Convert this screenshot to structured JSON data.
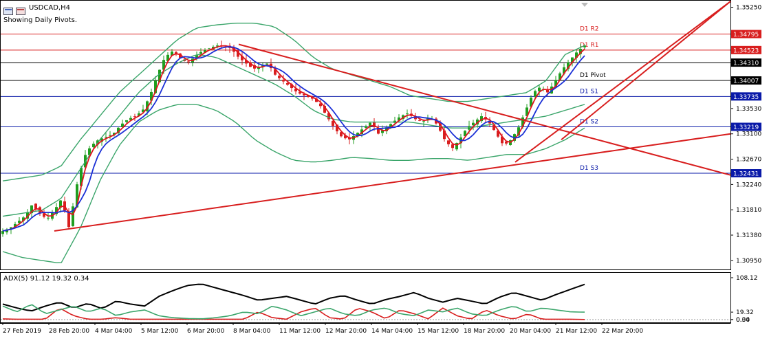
{
  "header": {
    "symbol": "USDCAD,H4",
    "pivot_note": "Showing Daily Pivots."
  },
  "indicator": {
    "label": "ADX(5) 91.12 19.32 0.34"
  },
  "colors": {
    "candle_up": "#1f9e1f",
    "candle_down": "#d81e1e",
    "bollinger": "#3aa56a",
    "ma_red": "#e0141e",
    "ma_blue": "#1a2fd6",
    "trendline": "#d81e1e",
    "pivot_red": "#d81e1e",
    "pivot_blue": "#0a1aa8",
    "pivot_black": "#000000",
    "adx_main": "#000000",
    "adx_plus": "#d81e1e",
    "adx_minus": "#3aa56a"
  },
  "chart_data": [
    {
      "type": "candlestick",
      "title": "USDCAD,H4",
      "subtitle": "Showing Daily Pivots.",
      "ylim": [
        1.3082,
        1.3535
      ],
      "y_ticks": [
        "1.35250",
        "1.34795",
        "1.34523",
        "1.34310",
        "1.34007",
        "1.33735",
        "1.33530",
        "1.33219",
        "1.33100",
        "1.32670",
        "1.32431",
        "1.32240",
        "1.31810",
        "1.31380",
        "1.30950"
      ],
      "x_ticks": [
        "27 Feb 2019",
        "28 Feb 20:00",
        "4 Mar 04:00",
        "5 Mar 12:00",
        "6 Mar 20:00",
        "8 Mar 04:00",
        "11 Mar 12:00",
        "12 Mar 20:00",
        "14 Mar 04:00",
        "15 Mar 12:00",
        "18 Mar 20:00",
        "20 Mar 04:00",
        "21 Mar 12:00",
        "22 Mar 20:00"
      ],
      "pivots": [
        {
          "name": "D1 R2",
          "value": 1.34795,
          "color": "red"
        },
        {
          "name": "D1 R1",
          "value": 1.34523,
          "color": "red"
        },
        {
          "name": "",
          "value": 1.3431,
          "color": "black"
        },
        {
          "name": "D1 Pivot",
          "value": 1.34007,
          "color": "black"
        },
        {
          "name": "D1 S1",
          "value": 1.33735,
          "color": "blue"
        },
        {
          "name": "D1 S2",
          "value": 1.33219,
          "color": "blue"
        },
        {
          "name": "D1 S3",
          "value": 1.32431,
          "color": "blue"
        }
      ],
      "price_labels": [
        "1.34795",
        "1.34523",
        "1.34310",
        "1.34007",
        "1.33735",
        "1.33219",
        "1.32431"
      ],
      "close_path": [
        1.3145,
        1.315,
        1.316,
        1.317,
        1.319,
        1.3175,
        1.3165,
        1.318,
        1.32,
        1.315,
        1.322,
        1.327,
        1.329,
        1.33,
        1.3305,
        1.331,
        1.3325,
        1.3335,
        1.334,
        1.335,
        1.3375,
        1.341,
        1.344,
        1.345,
        1.344,
        1.343,
        1.344,
        1.345,
        1.3455,
        1.346,
        1.346,
        1.3455,
        1.344,
        1.343,
        1.342,
        1.3425,
        1.343,
        1.341,
        1.34,
        1.339,
        1.338,
        1.3375,
        1.337,
        1.336,
        1.334,
        1.332,
        1.3305,
        1.33,
        1.331,
        1.332,
        1.333,
        1.331,
        1.332,
        1.333,
        1.334,
        1.3345,
        1.3335,
        1.333,
        1.334,
        1.3325,
        1.33,
        1.3285,
        1.33,
        1.332,
        1.333,
        1.334,
        1.333,
        1.331,
        1.329,
        1.33,
        1.332,
        1.335,
        1.338,
        1.339,
        1.338,
        1.34,
        1.342,
        1.3435,
        1.345,
        1.346
      ],
      "series": [
        {
          "name": "",
          "note": "bollinger upper",
          "values": [
            1.323,
            1.3235,
            1.324,
            1.3255,
            1.33,
            1.334,
            1.338,
            1.341,
            1.344,
            1.347,
            1.349,
            1.3495,
            1.3498,
            1.3498,
            1.3492,
            1.347,
            1.344,
            1.342,
            1.341,
            1.34,
            1.339,
            1.3375,
            1.337,
            1.3365,
            1.3365,
            1.337,
            1.3375,
            1.338,
            1.34,
            1.3445,
            1.346
          ]
        },
        {
          "name": "",
          "note": "bollinger middle",
          "values": [
            1.317,
            1.3175,
            1.318,
            1.32,
            1.325,
            1.33,
            1.334,
            1.338,
            1.341,
            1.343,
            1.3445,
            1.344,
            1.3425,
            1.341,
            1.3395,
            1.3375,
            1.335,
            1.3335,
            1.333,
            1.333,
            1.333,
            1.333,
            1.3325,
            1.332,
            1.332,
            1.3325,
            1.333,
            1.3335,
            1.334,
            1.335,
            1.336
          ]
        },
        {
          "name": "",
          "note": "bollinger lower",
          "values": [
            1.311,
            1.31,
            1.3095,
            1.309,
            1.315,
            1.323,
            1.329,
            1.333,
            1.335,
            1.336,
            1.336,
            1.335,
            1.333,
            1.33,
            1.328,
            1.3265,
            1.3262,
            1.3265,
            1.327,
            1.3268,
            1.3265,
            1.3265,
            1.3268,
            1.3268,
            1.3265,
            1.327,
            1.3275,
            1.3275,
            1.3285,
            1.33,
            1.332
          ]
        }
      ],
      "trendlines": [
        {
          "from": [
            "28 Feb 20:00",
            1.3145
          ],
          "to": [
            "22 Mar 20:00+",
            1.331
          ]
        },
        {
          "from": [
            "8 Mar 04:00",
            1.3462
          ],
          "to": [
            "22 Mar 20:00+",
            1.324
          ]
        },
        {
          "from": [
            "20 Mar 04:00",
            1.3262
          ],
          "to": [
            "22 Mar 20:00+",
            1.3535
          ]
        },
        {
          "from": [
            "21 Mar 12:00",
            1.33
          ],
          "to": [
            "22 Mar 20:00+",
            1.3535
          ]
        }
      ]
    },
    {
      "type": "line",
      "title": "ADX(5) 91.12 19.32 0.34",
      "ylim": [
        0,
        108.12
      ],
      "y_ticks": [
        "108.12",
        "0.00",
        "0.34",
        "19.32"
      ],
      "series": [
        {
          "name": "ADX",
          "values": [
            40,
            30,
            22,
            35,
            45,
            30,
            42,
            28,
            48,
            40,
            35,
            60,
            75,
            88,
            92,
            82,
            72,
            62,
            50,
            55,
            60,
            50,
            40,
            55,
            62,
            50,
            40,
            52,
            60,
            70,
            55,
            45,
            55,
            48,
            40,
            58,
            70,
            60,
            50,
            65,
            78,
            91
          ]
        },
        {
          "name": "+DI",
          "values": [
            2,
            1,
            1,
            1,
            30,
            10,
            1,
            1,
            5,
            1,
            1,
            1,
            1,
            1,
            1,
            1,
            1,
            1,
            20,
            5,
            1,
            20,
            30,
            5,
            1,
            30,
            20,
            2,
            25,
            15,
            2,
            30,
            10,
            1,
            25,
            10,
            1,
            15,
            1,
            1,
            1,
            0.34
          ]
        },
        {
          "name": "-DI",
          "values": [
            35,
            20,
            40,
            15,
            25,
            35,
            20,
            30,
            10,
            20,
            25,
            10,
            5,
            3,
            2,
            5,
            10,
            20,
            15,
            35,
            25,
            10,
            20,
            30,
            15,
            10,
            25,
            30,
            15,
            10,
            25,
            20,
            30,
            15,
            10,
            25,
            35,
            20,
            30,
            25,
            20,
            19.32
          ]
        }
      ]
    }
  ]
}
